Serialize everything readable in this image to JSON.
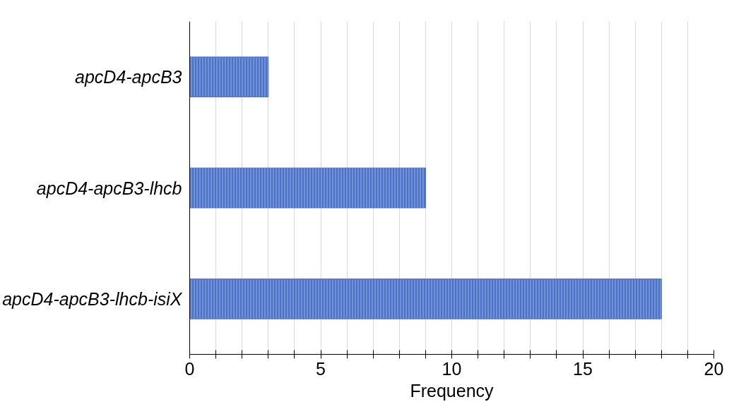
{
  "chart_data": {
    "type": "bar",
    "orientation": "horizontal",
    "xlabel": "Frequency",
    "categories": [
      "apcD4-apcB3",
      "apcD4-apcB3-lhcb",
      "apcD4-apcB3-lhcb-isiX"
    ],
    "values": [
      3,
      9,
      18
    ],
    "color": "#4a72c8",
    "xlim": [
      0,
      20
    ],
    "xticks": [
      0,
      {
        "value": 1,
        "label": null
      },
      {
        "value": 2,
        "label": null
      },
      {
        "value": 3,
        "label": null
      },
      {
        "value": 4,
        "label": null
      },
      5,
      {
        "value": 6,
        "label": null
      },
      {
        "value": 7,
        "label": null
      },
      {
        "value": 8,
        "label": null
      },
      {
        "value": 9,
        "label": null
      },
      10,
      {
        "value": 11,
        "label": null
      },
      {
        "value": 12,
        "label": null
      },
      {
        "value": 13,
        "label": null
      },
      {
        "value": 14,
        "label": null
      },
      15,
      {
        "value": 16,
        "label": null
      },
      {
        "value": 17,
        "label": null
      },
      {
        "value": 18,
        "label": null
      },
      {
        "value": 19,
        "label": null
      },
      20
    ],
    "grid": "x"
  }
}
